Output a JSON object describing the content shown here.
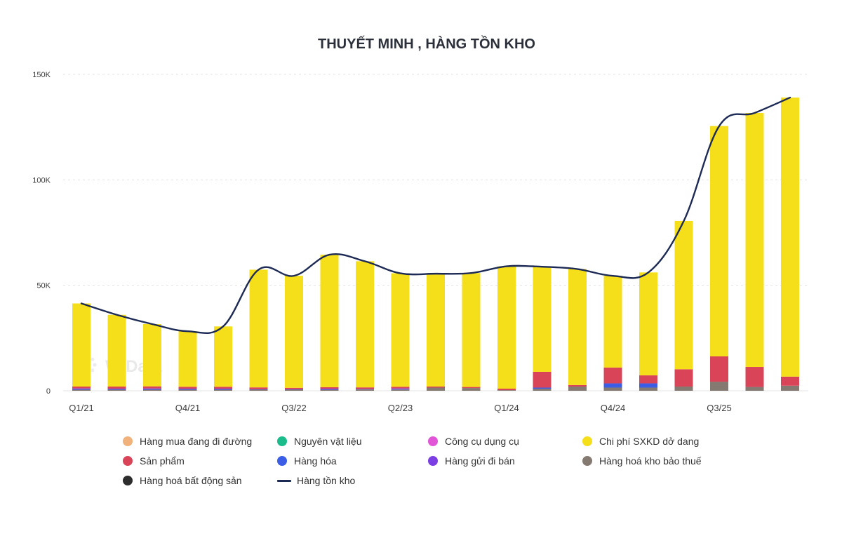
{
  "chart_data": {
    "type": "bar",
    "title": "THUYẾT MINH , HÀNG TỒN KHO",
    "watermark": "WiData",
    "stacked": true,
    "categories": [
      "Q1/21",
      "Q2/21",
      "Q3/21",
      "Q4/21",
      "Q1/22",
      "Q2/22",
      "Q3/22",
      "Q4/22",
      "Q1/23",
      "Q2/23",
      "Q3/23",
      "Q4/23",
      "Q1/24",
      "Q2/24",
      "Q3/24",
      "Q4/24",
      "Q1/25",
      "Q2/25",
      "Q3/25",
      "Q4/25",
      "Q1/26"
    ],
    "x_tick_labels": [
      "Q1/21",
      "Q4/21",
      "Q3/22",
      "Q2/23",
      "Q1/24",
      "Q4/24",
      "Q3/25"
    ],
    "x_tick_indices": [
      0,
      3,
      6,
      9,
      12,
      15,
      18
    ],
    "y_ticks": [
      0,
      50000,
      100000,
      150000
    ],
    "y_tick_labels": [
      "0",
      "50K",
      "100K",
      "150K"
    ],
    "ylim": [
      0,
      150000
    ],
    "grid": true,
    "legend_position": "bottom",
    "series": [
      {
        "name": "Hàng mua đang đi đường",
        "color": "#f0b27a",
        "values": [
          0,
          0,
          0,
          0,
          0,
          0,
          0,
          0,
          0,
          0,
          0,
          0,
          0,
          0,
          0,
          0,
          0,
          0,
          0,
          0,
          0
        ]
      },
      {
        "name": "Nguyên vật liệu",
        "color": "#1abc8c",
        "values": [
          0,
          0,
          0,
          0,
          0,
          0,
          0,
          0,
          0,
          0,
          0,
          0,
          0,
          0,
          0,
          0,
          0,
          0,
          0,
          0,
          0
        ]
      },
      {
        "name": "Công cụ dụng cụ",
        "color": "#e056d6",
        "values": [
          0,
          0,
          0,
          0,
          0,
          0,
          0,
          0,
          0,
          0,
          0,
          0,
          0,
          0,
          0,
          0,
          0,
          0,
          0,
          0,
          0
        ]
      },
      {
        "name": "Hàng hoá kho bảo thuế",
        "color": "#857a72",
        "values": [
          500,
          500,
          500,
          500,
          500,
          500,
          500,
          500,
          600,
          600,
          1500,
          1300,
          300,
          1000,
          2000,
          1500,
          1500,
          2000,
          4300,
          1800,
          2400
        ]
      },
      {
        "name": "Hàng hóa",
        "color": "#3c5ee6",
        "values": [
          300,
          300,
          300,
          300,
          300,
          200,
          200,
          200,
          200,
          200,
          0,
          0,
          0,
          500,
          0,
          2000,
          2000,
          0,
          0,
          0,
          0
        ]
      },
      {
        "name": "Hàng gửi đi bán",
        "color": "#7b3fe4",
        "values": [
          300,
          200,
          300,
          200,
          200,
          0,
          0,
          300,
          0,
          300,
          0,
          0,
          0,
          0,
          0,
          0,
          0,
          0,
          0,
          0,
          0
        ]
      },
      {
        "name": "Sản phẩm",
        "color": "#d94459",
        "values": [
          900,
          1000,
          1000,
          900,
          900,
          900,
          700,
          700,
          800,
          800,
          500,
          500,
          700,
          7500,
          700,
          7500,
          3800,
          8200,
          12000,
          9500,
          4300
        ]
      },
      {
        "name": "Chi phí SXKD dở dang",
        "color": "#f5df1a",
        "values": [
          39400,
          34000,
          29500,
          26300,
          28600,
          55800,
          53100,
          62800,
          59800,
          53800,
          53500,
          54000,
          58000,
          49800,
          55000,
          43500,
          48800,
          70300,
          109200,
          120400,
          132300
        ]
      },
      {
        "name": "Hàng hoá bất động sản",
        "color": "#2d2d2d",
        "values": [
          0,
          0,
          0,
          0,
          0,
          0,
          0,
          0,
          0,
          0,
          0,
          0,
          0,
          0,
          0,
          0,
          0,
          0,
          0,
          0,
          0
        ]
      }
    ],
    "line_series": {
      "name": "Hàng tồn kho",
      "color": "#1c2a55",
      "values": [
        41400,
        36000,
        31600,
        28200,
        30500,
        57400,
        54500,
        64500,
        61400,
        55700,
        55500,
        55800,
        59000,
        58800,
        57700,
        54500,
        56100,
        80500,
        125500,
        131700,
        139000
      ]
    },
    "legend": [
      {
        "name": "Hàng mua đang đi đường",
        "color": "#f0b27a",
        "shape": "dot"
      },
      {
        "name": "Nguyên vật liệu",
        "color": "#1abc8c",
        "shape": "dot"
      },
      {
        "name": "Công cụ dụng cụ",
        "color": "#e056d6",
        "shape": "dot"
      },
      {
        "name": "Chi phí SXKD dở dang",
        "color": "#f5df1a",
        "shape": "dot"
      },
      {
        "name": "Sản phẩm",
        "color": "#d94459",
        "shape": "dot"
      },
      {
        "name": "Hàng hóa",
        "color": "#3c5ee6",
        "shape": "dot"
      },
      {
        "name": "Hàng gửi đi bán",
        "color": "#7b3fe4",
        "shape": "dot"
      },
      {
        "name": "Hàng hoá kho bảo thuế",
        "color": "#857a72",
        "shape": "dot"
      },
      {
        "name": "Hàng hoá bất động sản",
        "color": "#2d2d2d",
        "shape": "dot"
      },
      {
        "name": "Hàng tồn kho",
        "color": "#1c2a55",
        "shape": "line"
      }
    ]
  }
}
